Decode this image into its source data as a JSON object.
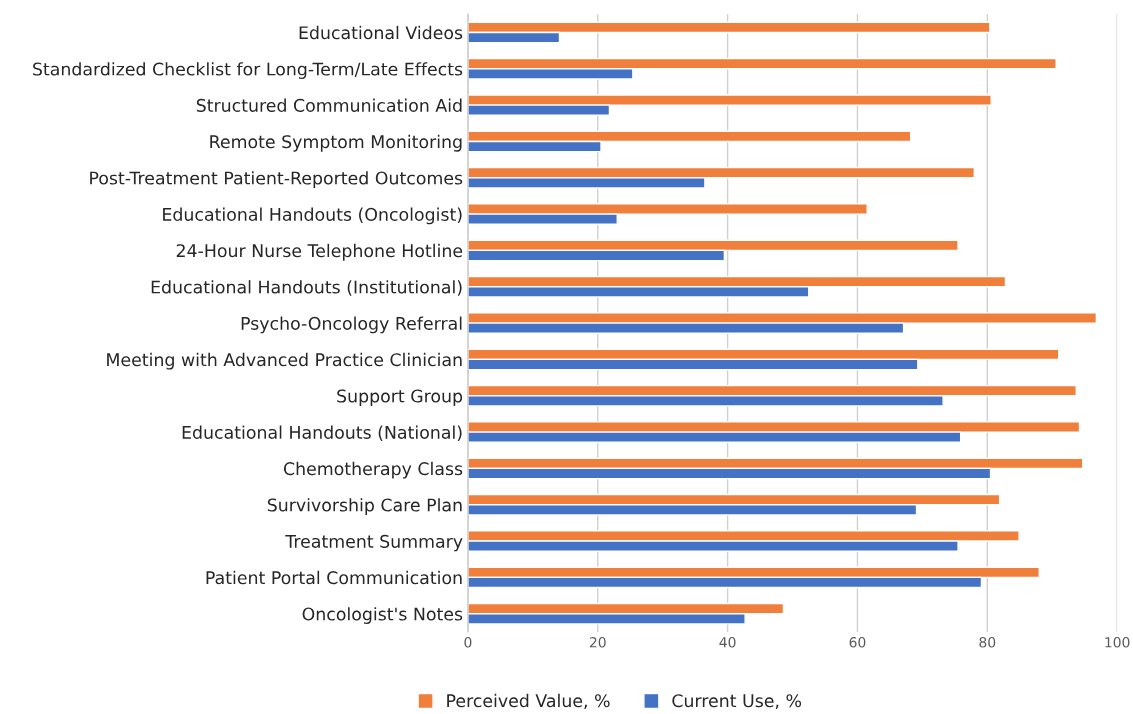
{
  "chart_data": {
    "type": "bar",
    "orientation": "horizontal",
    "categories": [
      "Educational Videos",
      "Standardized Checklist for Long-Term/Late Effects",
      "Structured Communication Aid",
      "Remote Symptom Monitoring",
      "Post-Treatment Patient-Reported Outcomes",
      "Educational Handouts (Oncologist)",
      "24-Hour Nurse Telephone Hotline",
      "Educational Handouts (Institutional)",
      "Psycho-Oncology Referral",
      "Meeting with Advanced Practice Clinician",
      "Support Group",
      "Educational Handouts (National)",
      "Chemotherapy Class",
      "Survivorship Care Plan",
      "Treatment Summary",
      "Patient Portal Communication",
      "Oncologist's Notes"
    ],
    "series": [
      {
        "name": "Perceived Value, %",
        "color": "#f07f3c",
        "values": [
          80.4,
          90.6,
          80.6,
          68.2,
          78,
          61.5,
          75.5,
          82.8,
          96.8,
          91,
          93.7,
          94.2,
          94.7,
          81.9,
          84.9,
          88,
          48.6
        ]
      },
      {
        "name": "Current Use, %",
        "color": "#4472c4",
        "values": [
          14.1,
          25.4,
          21.8,
          20.5,
          36.5,
          23,
          39.5,
          52.5,
          67.1,
          69.3,
          73.2,
          75.9,
          80.5,
          69.1,
          75.5,
          79.1,
          42.7
        ]
      }
    ],
    "xlim": [
      0,
      100
    ],
    "xticks": [
      0,
      20,
      40,
      60,
      80,
      100
    ],
    "grid": "x",
    "legend": "bottom"
  }
}
